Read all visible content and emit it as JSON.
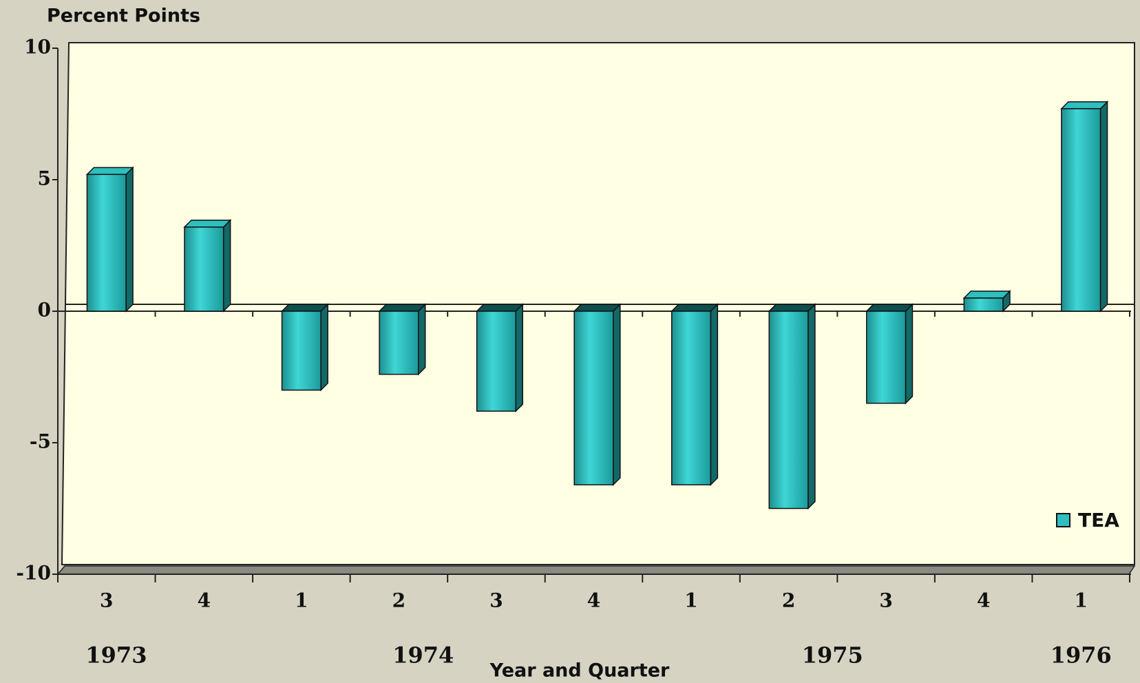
{
  "chart_data": {
    "type": "bar",
    "y_axis_label": "Percent Points",
    "x_axis_label": "Year and Quarter",
    "categories": [
      "3",
      "4",
      "1",
      "2",
      "3",
      "4",
      "1",
      "2",
      "3",
      "4",
      "1"
    ],
    "years": [
      "1973",
      "1974",
      "1975",
      "1976"
    ],
    "series": [
      {
        "name": "TEA",
        "color": "#2fbfbf",
        "values": [
          5.2,
          3.2,
          -3.0,
          -2.4,
          -3.8,
          -6.6,
          -6.6,
          -7.5,
          -3.5,
          0.5,
          7.7
        ]
      }
    ],
    "ylim": [
      -10,
      10
    ],
    "yticks": [
      -10,
      -5,
      0,
      5,
      10
    ],
    "legend": "lower right"
  }
}
